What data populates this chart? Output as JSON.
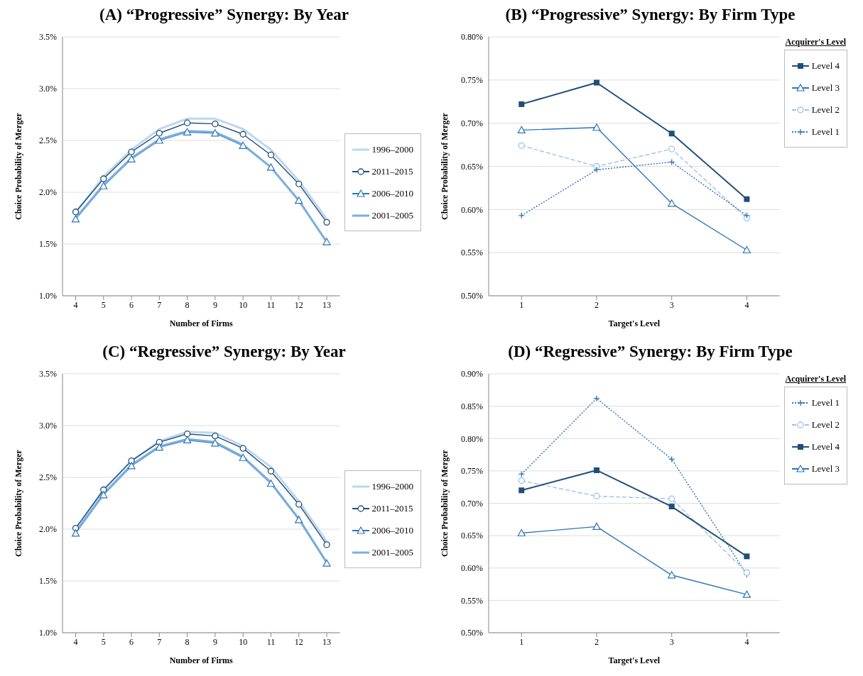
{
  "chart_data": [
    {
      "type": "line",
      "title": "(A)  “Progressive” Synergy: By Year",
      "xlabel": "Number of Firms",
      "ylabel": "Choice Probability of Merger",
      "categories": [
        "4",
        "5",
        "6",
        "7",
        "8",
        "9",
        "10",
        "11",
        "12",
        "13"
      ],
      "ylim": [
        1.0,
        3.5
      ],
      "yticks": [
        {
          "value": 1.0,
          "label": "1.0%"
        },
        {
          "value": 1.5,
          "label": "1.5%"
        },
        {
          "value": 2.0,
          "label": "2.0%"
        },
        {
          "value": 2.5,
          "label": "2.5%"
        },
        {
          "value": 3.0,
          "label": "3.0%"
        },
        {
          "value": 3.5,
          "label": "3.5%"
        }
      ],
      "grid": "y",
      "legend": "right",
      "series": [
        {
          "name": "1996–2000",
          "color": "#bdd7ee",
          "marker": "none",
          "line_style": "solid",
          "values": [
            1.8,
            2.15,
            2.41,
            2.61,
            2.71,
            2.71,
            2.61,
            2.41,
            2.11,
            1.74
          ]
        },
        {
          "name": "2011–2015",
          "color": "#1f4e79",
          "marker": "circle",
          "line_style": "solid",
          "values": [
            1.81,
            2.13,
            2.39,
            2.57,
            2.67,
            2.66,
            2.56,
            2.36,
            2.08,
            1.71
          ]
        },
        {
          "name": "2006–2010",
          "color": "#2e75b6",
          "marker": "triangle",
          "line_style": "solid",
          "values": [
            1.74,
            2.06,
            2.32,
            2.5,
            2.58,
            2.57,
            2.45,
            2.24,
            1.92,
            1.52
          ]
        },
        {
          "name": "2001–2005",
          "color": "#7aaee0",
          "marker": "none",
          "line_style": "solid",
          "values": [
            1.75,
            2.07,
            2.33,
            2.51,
            2.59,
            2.58,
            2.46,
            2.24,
            1.92,
            1.52
          ]
        }
      ]
    },
    {
      "type": "line",
      "title": "(B)  “Progressive” Synergy: By Firm Type",
      "xlabel": "Target's Level",
      "ylabel": "Choice Probability of Merger",
      "legend_title": "Acquirer's Level",
      "categories": [
        "1",
        "2",
        "3",
        "4"
      ],
      "ylim": [
        0.5,
        0.8
      ],
      "yticks": [
        {
          "value": 0.5,
          "label": "0.50%"
        },
        {
          "value": 0.55,
          "label": "0.55%"
        },
        {
          "value": 0.6,
          "label": "0.60%"
        },
        {
          "value": 0.65,
          "label": "0.65%"
        },
        {
          "value": 0.7,
          "label": "0.70%"
        },
        {
          "value": 0.75,
          "label": "0.75%"
        },
        {
          "value": 0.8,
          "label": "0.80%"
        }
      ],
      "grid": "y",
      "legend": "top right",
      "series": [
        {
          "name": "Level 4",
          "color": "#1f4e79",
          "marker": "square",
          "line_style": "solid",
          "values": [
            0.722,
            0.747,
            0.688,
            0.612
          ]
        },
        {
          "name": "Level 3",
          "color": "#2e75b6",
          "marker": "triangle",
          "line_style": "solid",
          "values": [
            0.692,
            0.695,
            0.607,
            0.553
          ]
        },
        {
          "name": "Level 2",
          "color": "#9dc3e6",
          "marker": "circle",
          "line_style": "dashed",
          "values": [
            0.674,
            0.65,
            0.67,
            0.59
          ]
        },
        {
          "name": "Level 1",
          "color": "#2e75b6",
          "marker": "cross",
          "line_style": "dotted",
          "values": [
            0.593,
            0.646,
            0.655,
            0.593
          ]
        }
      ]
    },
    {
      "type": "line",
      "title": "(C)  “Regressive” Synergy: By Year",
      "xlabel": "Number of Firms",
      "ylabel": "Choice Probability of Merger",
      "categories": [
        "4",
        "5",
        "6",
        "7",
        "8",
        "9",
        "10",
        "11",
        "12",
        "13"
      ],
      "ylim": [
        1.0,
        3.5
      ],
      "yticks": [
        {
          "value": 1.0,
          "label": "1.0%"
        },
        {
          "value": 1.5,
          "label": "1.5%"
        },
        {
          "value": 2.0,
          "label": "2.0%"
        },
        {
          "value": 2.5,
          "label": "2.5%"
        },
        {
          "value": 3.0,
          "label": "3.0%"
        },
        {
          "value": 3.5,
          "label": "3.5%"
        }
      ],
      "grid": "y",
      "legend": "right",
      "series": [
        {
          "name": "1996–2000",
          "color": "#bdd7ee",
          "marker": "none",
          "line_style": "solid",
          "values": [
            2.0,
            2.38,
            2.66,
            2.85,
            2.94,
            2.93,
            2.8,
            2.6,
            2.27,
            1.88
          ]
        },
        {
          "name": "2011–2015",
          "color": "#1f4e79",
          "marker": "circle",
          "line_style": "solid",
          "values": [
            2.01,
            2.38,
            2.66,
            2.84,
            2.92,
            2.9,
            2.78,
            2.56,
            2.24,
            1.85
          ]
        },
        {
          "name": "2006–2010",
          "color": "#2e75b6",
          "marker": "triangle",
          "line_style": "solid",
          "values": [
            1.96,
            2.33,
            2.61,
            2.79,
            2.86,
            2.83,
            2.69,
            2.44,
            2.09,
            1.67
          ]
        },
        {
          "name": "2001–2005",
          "color": "#7aaee0",
          "marker": "none",
          "line_style": "solid",
          "values": [
            1.97,
            2.34,
            2.62,
            2.8,
            2.87,
            2.84,
            2.7,
            2.45,
            2.1,
            1.68
          ]
        }
      ]
    },
    {
      "type": "line",
      "title": "(D)  “Regressive” Synergy: By Firm Type",
      "xlabel": "Target's Level",
      "ylabel": "Choice Probability of Merger",
      "legend_title": "Acquirer's Level",
      "categories": [
        "1",
        "2",
        "3",
        "4"
      ],
      "ylim": [
        0.5,
        0.9
      ],
      "yticks": [
        {
          "value": 0.5,
          "label": "0.50%"
        },
        {
          "value": 0.55,
          "label": "0.55%"
        },
        {
          "value": 0.6,
          "label": "0.60%"
        },
        {
          "value": 0.65,
          "label": "0.65%"
        },
        {
          "value": 0.7,
          "label": "0.70%"
        },
        {
          "value": 0.75,
          "label": "0.75%"
        },
        {
          "value": 0.8,
          "label": "0.80%"
        },
        {
          "value": 0.85,
          "label": "0.85%"
        },
        {
          "value": 0.9,
          "label": "0.90%"
        }
      ],
      "grid": "y",
      "legend": "top right",
      "series": [
        {
          "name": "Level 1",
          "color": "#2e75b6",
          "marker": "cross",
          "line_style": "dotted",
          "values": [
            0.745,
            0.862,
            0.768,
            0.59
          ]
        },
        {
          "name": "Level 2",
          "color": "#9dc3e6",
          "marker": "circle",
          "line_style": "dashed",
          "values": [
            0.735,
            0.711,
            0.707,
            0.593
          ]
        },
        {
          "name": "Level 4",
          "color": "#1f4e79",
          "marker": "square",
          "line_style": "solid",
          "values": [
            0.72,
            0.751,
            0.695,
            0.618
          ]
        },
        {
          "name": "Level 3",
          "color": "#2e75b6",
          "marker": "triangle",
          "line_style": "solid",
          "values": [
            0.654,
            0.664,
            0.589,
            0.559
          ]
        }
      ]
    }
  ]
}
